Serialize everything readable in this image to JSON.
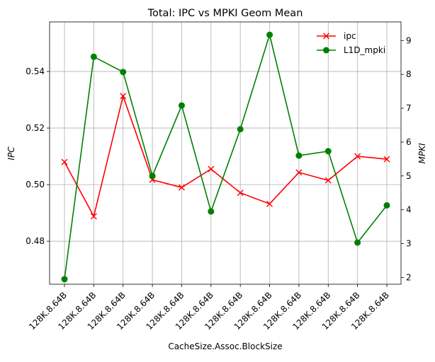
{
  "chart_data": {
    "type": "line",
    "title": "Total: IPC vs MPKI Geom Mean",
    "xlabel": "CacheSize.Assoc.BlockSize",
    "ylabel": "IPC",
    "y2label": "MPKI",
    "categories": [
      "128K.8.64B",
      "128K.8.64B",
      "128K.8.64B",
      "128K.8.64B",
      "128K.8.64B",
      "128K.8.64B",
      "128K.8.64B",
      "128K.8.64B",
      "128K.8.64B",
      "128K.8.64B",
      "128K.8.64B",
      "128K.8.64B"
    ],
    "ylim": [
      0.4648,
      0.5575
    ],
    "y2lim": [
      1.8,
      9.55
    ],
    "yticks": [
      "0.48",
      "0.50",
      "0.52",
      "0.54"
    ],
    "y2ticks": [
      "2",
      "3",
      "4",
      "5",
      "6",
      "7",
      "8",
      "9"
    ],
    "grid": true,
    "legend_position": "top-right",
    "series": [
      {
        "name": "ipc",
        "axis": "left",
        "color": "#ff0000",
        "marker": "x",
        "values": [
          0.508,
          0.4888,
          0.5313,
          0.5017,
          0.499,
          0.5055,
          0.4971,
          0.4932,
          0.5043,
          0.5015,
          0.51,
          0.509
        ]
      },
      {
        "name": "L1D_mpki",
        "axis": "right",
        "color": "#008000",
        "marker": "o",
        "values": [
          1.95,
          8.52,
          8.07,
          5.0,
          7.08,
          3.95,
          6.38,
          9.17,
          5.6,
          5.73,
          3.03,
          4.13
        ]
      }
    ]
  }
}
